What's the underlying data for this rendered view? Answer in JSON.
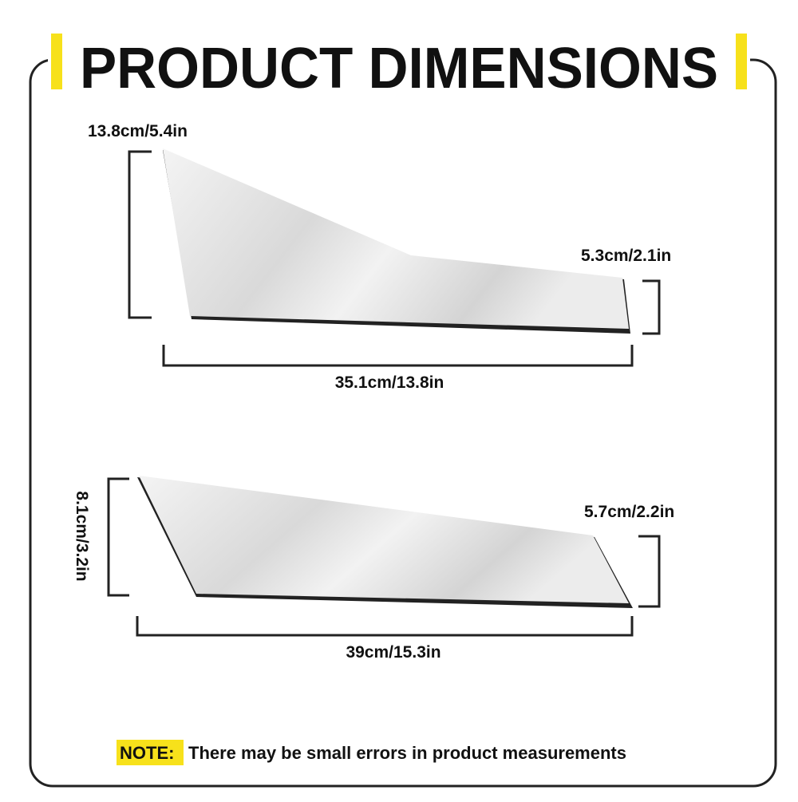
{
  "header": {
    "title": "PRODUCT DIMENSIONS"
  },
  "pieces": [
    {
      "height_left": "13.8cm/5.4in",
      "height_right": "5.3cm/2.1in",
      "length": "35.1cm/13.8in"
    },
    {
      "height_left": "8.1cm/3.2in",
      "height_right": "5.7cm/2.2in",
      "length": "39cm/15.3in"
    }
  ],
  "note": {
    "label": "NOTE:",
    "text": "There may be small errors in product measurements"
  }
}
